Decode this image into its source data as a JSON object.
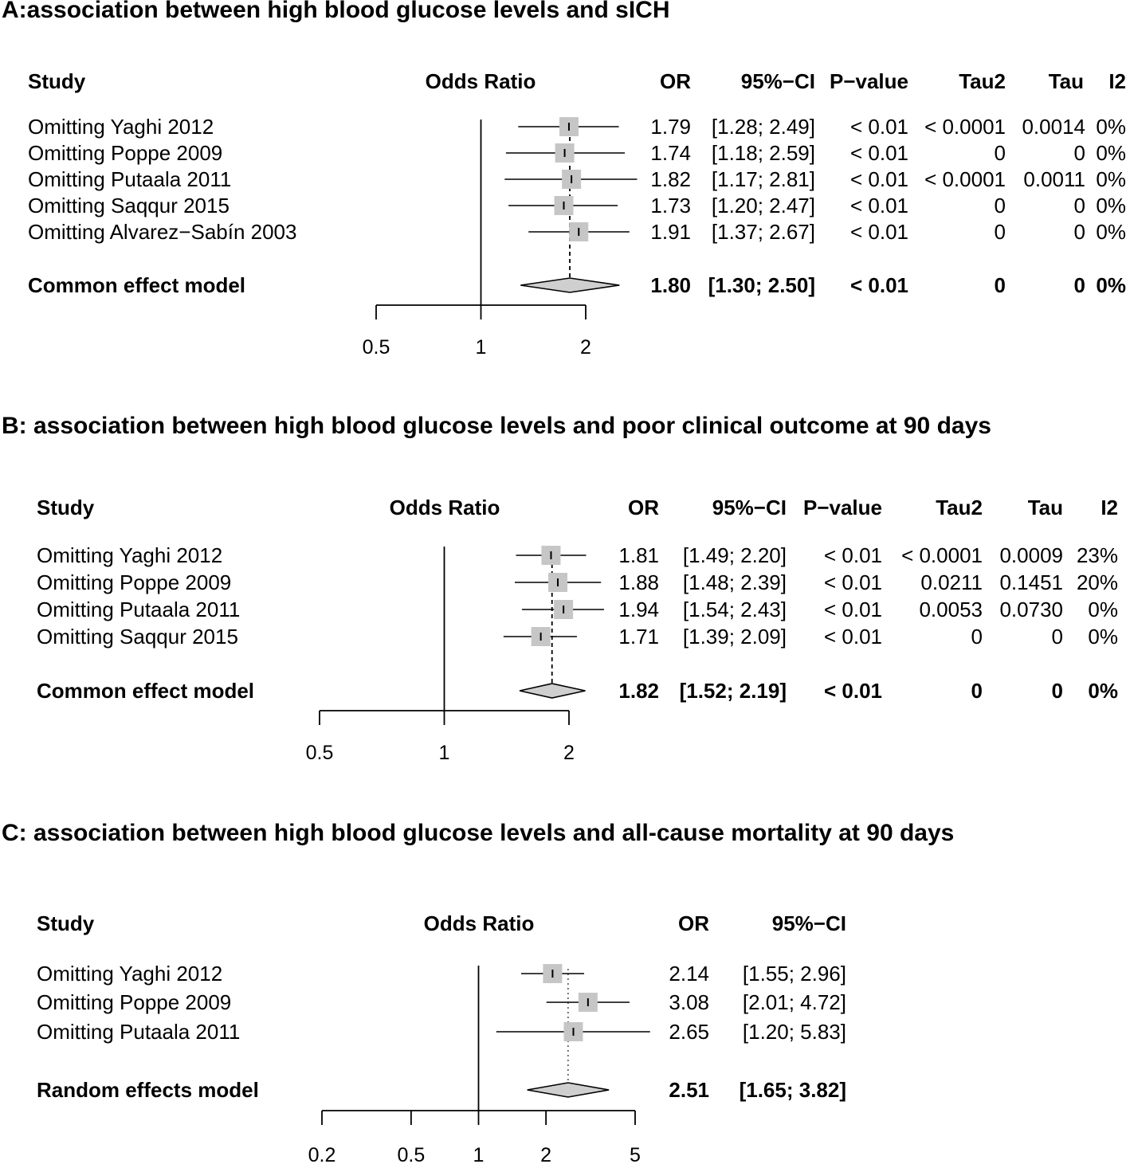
{
  "chart_data": [
    {
      "type": "forest",
      "title": "A:association between high blood glucose levels and sICH",
      "headers": {
        "study": "Study",
        "plot": "Odds Ratio",
        "or": "OR",
        "ci": "95%−CI",
        "p": "P−value",
        "tau2": "Tau2",
        "tau": "Tau",
        "i2": "I2"
      },
      "xscale": "log",
      "xlim": [
        0.5,
        2
      ],
      "ticks": [
        0.5,
        1,
        2
      ],
      "tick_labels": [
        "0.5",
        "1",
        "2"
      ],
      "rows": [
        {
          "study": "Omitting Yaghi 2012",
          "or": 1.79,
          "lower": 1.28,
          "upper": 2.49,
          "or_text": "1.79",
          "ci_text": "[1.28; 2.49]",
          "p": "< 0.01",
          "tau2": "< 0.0001",
          "tau": "0.0014",
          "i2": "0%"
        },
        {
          "study": "Omitting Poppe 2009",
          "or": 1.74,
          "lower": 1.18,
          "upper": 2.59,
          "or_text": "1.74",
          "ci_text": "[1.18; 2.59]",
          "p": "< 0.01",
          "tau2": "0",
          "tau": "0",
          "i2": "0%"
        },
        {
          "study": "Omitting Putaala 2011",
          "or": 1.82,
          "lower": 1.17,
          "upper": 2.81,
          "or_text": "1.82",
          "ci_text": "[1.17; 2.81]",
          "p": "< 0.01",
          "tau2": "< 0.0001",
          "tau": "0.0011",
          "i2": "0%"
        },
        {
          "study": "Omitting Saqqur 2015",
          "or": 1.73,
          "lower": 1.2,
          "upper": 2.47,
          "or_text": "1.73",
          "ci_text": "[1.20; 2.47]",
          "p": "< 0.01",
          "tau2": "0",
          "tau": "0",
          "i2": "0%"
        },
        {
          "study": "Omitting Alvarez−Sabín 2003",
          "or": 1.91,
          "lower": 1.37,
          "upper": 2.67,
          "or_text": "1.91",
          "ci_text": "[1.37; 2.67]",
          "p": "< 0.01",
          "tau2": "0",
          "tau": "0",
          "i2": "0%"
        }
      ],
      "summary": {
        "study": "Common effect model",
        "or": 1.8,
        "lower": 1.3,
        "upper": 2.5,
        "or_text": "1.80",
        "ci_text": "[1.30; 2.50]",
        "p": "< 0.01",
        "tau2": "0",
        "tau": "0",
        "i2": "0%"
      }
    },
    {
      "type": "forest",
      "title": "B: association between high blood glucose levels and poor clinical outcome at 90 days",
      "headers": {
        "study": "Study",
        "plot": "Odds Ratio",
        "or": "OR",
        "ci": "95%−CI",
        "p": "P−value",
        "tau2": "Tau2",
        "tau": "Tau",
        "i2": "I2"
      },
      "xscale": "log",
      "xlim": [
        0.5,
        2
      ],
      "ticks": [
        0.5,
        1,
        2
      ],
      "tick_labels": [
        "0.5",
        "1",
        "2"
      ],
      "rows": [
        {
          "study": "Omitting Yaghi 2012",
          "or": 1.81,
          "lower": 1.49,
          "upper": 2.2,
          "or_text": "1.81",
          "ci_text": "[1.49; 2.20]",
          "p": "< 0.01",
          "tau2": "< 0.0001",
          "tau": "0.0009",
          "i2": "23%"
        },
        {
          "study": "Omitting Poppe 2009",
          "or": 1.88,
          "lower": 1.48,
          "upper": 2.39,
          "or_text": "1.88",
          "ci_text": "[1.48; 2.39]",
          "p": "< 0.01",
          "tau2": "0.0211",
          "tau": "0.1451",
          "i2": "20%"
        },
        {
          "study": "Omitting Putaala 2011",
          "or": 1.94,
          "lower": 1.54,
          "upper": 2.43,
          "or_text": "1.94",
          "ci_text": "[1.54; 2.43]",
          "p": "< 0.01",
          "tau2": "0.0053",
          "tau": "0.0730",
          "i2": "0%"
        },
        {
          "study": "Omitting Saqqur 2015",
          "or": 1.71,
          "lower": 1.39,
          "upper": 2.09,
          "or_text": "1.71",
          "ci_text": "[1.39; 2.09]",
          "p": "< 0.01",
          "tau2": "0",
          "tau": "0",
          "i2": "0%"
        }
      ],
      "summary": {
        "study": "Common effect model",
        "or": 1.82,
        "lower": 1.52,
        "upper": 2.19,
        "or_text": "1.82",
        "ci_text": "[1.52; 2.19]",
        "p": "< 0.01",
        "tau2": "0",
        "tau": "0",
        "i2": "0%"
      }
    },
    {
      "type": "forest",
      "title": "C: association between high blood glucose levels and all-cause mortality at 90 days",
      "headers": {
        "study": "Study",
        "plot": "Odds Ratio",
        "or": "OR",
        "ci": "95%−CI"
      },
      "xscale": "log",
      "xlim": [
        0.2,
        5
      ],
      "ticks": [
        0.2,
        0.5,
        1,
        2,
        5
      ],
      "tick_labels": [
        "0.2",
        "0.5",
        "1",
        "2",
        "5"
      ],
      "rows": [
        {
          "study": "Omitting Yaghi 2012",
          "or": 2.14,
          "lower": 1.55,
          "upper": 2.96,
          "or_text": "2.14",
          "ci_text": "[1.55; 2.96]"
        },
        {
          "study": "Omitting Poppe 2009",
          "or": 3.08,
          "lower": 2.01,
          "upper": 4.72,
          "or_text": "3.08",
          "ci_text": "[2.01; 4.72]"
        },
        {
          "study": "Omitting Putaala 2011",
          "or": 2.65,
          "lower": 1.2,
          "upper": 5.83,
          "or_text": "2.65",
          "ci_text": "[1.20; 5.83]"
        }
      ],
      "summary": {
        "study": "Random effects model",
        "or": 2.51,
        "lower": 1.65,
        "upper": 3.82,
        "or_text": "2.51",
        "ci_text": "[1.65; 3.82]"
      }
    }
  ]
}
